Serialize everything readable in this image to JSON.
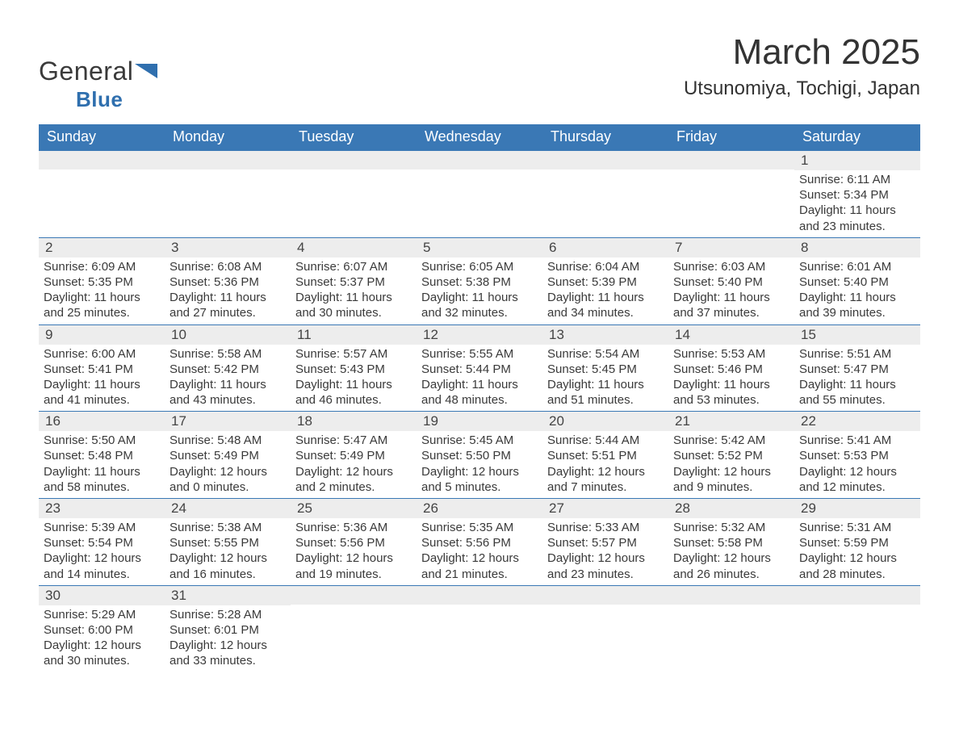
{
  "logo": {
    "word1": "General",
    "word2": "Blue"
  },
  "title": "March 2025",
  "location": "Utsunomiya, Tochigi, Japan",
  "colors": {
    "header_bg": "#3a78b5",
    "header_text": "#ffffff",
    "border": "#3a78b5",
    "daynum_bg": "#ededed",
    "text": "#3a3a3a",
    "logo_blue": "#2f6fae"
  },
  "typography": {
    "title_fontsize": 44,
    "location_fontsize": 24,
    "weekday_fontsize": 18,
    "daynum_fontsize": 17,
    "body_fontsize": 15
  },
  "weekdays": [
    "Sunday",
    "Monday",
    "Tuesday",
    "Wednesday",
    "Thursday",
    "Friday",
    "Saturday"
  ],
  "weeks": [
    [
      null,
      null,
      null,
      null,
      null,
      null,
      {
        "n": "1",
        "sunrise": "Sunrise: 6:11 AM",
        "sunset": "Sunset: 5:34 PM",
        "daylight": "Daylight: 11 hours and 23 minutes."
      }
    ],
    [
      {
        "n": "2",
        "sunrise": "Sunrise: 6:09 AM",
        "sunset": "Sunset: 5:35 PM",
        "daylight": "Daylight: 11 hours and 25 minutes."
      },
      {
        "n": "3",
        "sunrise": "Sunrise: 6:08 AM",
        "sunset": "Sunset: 5:36 PM",
        "daylight": "Daylight: 11 hours and 27 minutes."
      },
      {
        "n": "4",
        "sunrise": "Sunrise: 6:07 AM",
        "sunset": "Sunset: 5:37 PM",
        "daylight": "Daylight: 11 hours and 30 minutes."
      },
      {
        "n": "5",
        "sunrise": "Sunrise: 6:05 AM",
        "sunset": "Sunset: 5:38 PM",
        "daylight": "Daylight: 11 hours and 32 minutes."
      },
      {
        "n": "6",
        "sunrise": "Sunrise: 6:04 AM",
        "sunset": "Sunset: 5:39 PM",
        "daylight": "Daylight: 11 hours and 34 minutes."
      },
      {
        "n": "7",
        "sunrise": "Sunrise: 6:03 AM",
        "sunset": "Sunset: 5:40 PM",
        "daylight": "Daylight: 11 hours and 37 minutes."
      },
      {
        "n": "8",
        "sunrise": "Sunrise: 6:01 AM",
        "sunset": "Sunset: 5:40 PM",
        "daylight": "Daylight: 11 hours and 39 minutes."
      }
    ],
    [
      {
        "n": "9",
        "sunrise": "Sunrise: 6:00 AM",
        "sunset": "Sunset: 5:41 PM",
        "daylight": "Daylight: 11 hours and 41 minutes."
      },
      {
        "n": "10",
        "sunrise": "Sunrise: 5:58 AM",
        "sunset": "Sunset: 5:42 PM",
        "daylight": "Daylight: 11 hours and 43 minutes."
      },
      {
        "n": "11",
        "sunrise": "Sunrise: 5:57 AM",
        "sunset": "Sunset: 5:43 PM",
        "daylight": "Daylight: 11 hours and 46 minutes."
      },
      {
        "n": "12",
        "sunrise": "Sunrise: 5:55 AM",
        "sunset": "Sunset: 5:44 PM",
        "daylight": "Daylight: 11 hours and 48 minutes."
      },
      {
        "n": "13",
        "sunrise": "Sunrise: 5:54 AM",
        "sunset": "Sunset: 5:45 PM",
        "daylight": "Daylight: 11 hours and 51 minutes."
      },
      {
        "n": "14",
        "sunrise": "Sunrise: 5:53 AM",
        "sunset": "Sunset: 5:46 PM",
        "daylight": "Daylight: 11 hours and 53 minutes."
      },
      {
        "n": "15",
        "sunrise": "Sunrise: 5:51 AM",
        "sunset": "Sunset: 5:47 PM",
        "daylight": "Daylight: 11 hours and 55 minutes."
      }
    ],
    [
      {
        "n": "16",
        "sunrise": "Sunrise: 5:50 AM",
        "sunset": "Sunset: 5:48 PM",
        "daylight": "Daylight: 11 hours and 58 minutes."
      },
      {
        "n": "17",
        "sunrise": "Sunrise: 5:48 AM",
        "sunset": "Sunset: 5:49 PM",
        "daylight": "Daylight: 12 hours and 0 minutes."
      },
      {
        "n": "18",
        "sunrise": "Sunrise: 5:47 AM",
        "sunset": "Sunset: 5:49 PM",
        "daylight": "Daylight: 12 hours and 2 minutes."
      },
      {
        "n": "19",
        "sunrise": "Sunrise: 5:45 AM",
        "sunset": "Sunset: 5:50 PM",
        "daylight": "Daylight: 12 hours and 5 minutes."
      },
      {
        "n": "20",
        "sunrise": "Sunrise: 5:44 AM",
        "sunset": "Sunset: 5:51 PM",
        "daylight": "Daylight: 12 hours and 7 minutes."
      },
      {
        "n": "21",
        "sunrise": "Sunrise: 5:42 AM",
        "sunset": "Sunset: 5:52 PM",
        "daylight": "Daylight: 12 hours and 9 minutes."
      },
      {
        "n": "22",
        "sunrise": "Sunrise: 5:41 AM",
        "sunset": "Sunset: 5:53 PM",
        "daylight": "Daylight: 12 hours and 12 minutes."
      }
    ],
    [
      {
        "n": "23",
        "sunrise": "Sunrise: 5:39 AM",
        "sunset": "Sunset: 5:54 PM",
        "daylight": "Daylight: 12 hours and 14 minutes."
      },
      {
        "n": "24",
        "sunrise": "Sunrise: 5:38 AM",
        "sunset": "Sunset: 5:55 PM",
        "daylight": "Daylight: 12 hours and 16 minutes."
      },
      {
        "n": "25",
        "sunrise": "Sunrise: 5:36 AM",
        "sunset": "Sunset: 5:56 PM",
        "daylight": "Daylight: 12 hours and 19 minutes."
      },
      {
        "n": "26",
        "sunrise": "Sunrise: 5:35 AM",
        "sunset": "Sunset: 5:56 PM",
        "daylight": "Daylight: 12 hours and 21 minutes."
      },
      {
        "n": "27",
        "sunrise": "Sunrise: 5:33 AM",
        "sunset": "Sunset: 5:57 PM",
        "daylight": "Daylight: 12 hours and 23 minutes."
      },
      {
        "n": "28",
        "sunrise": "Sunrise: 5:32 AM",
        "sunset": "Sunset: 5:58 PM",
        "daylight": "Daylight: 12 hours and 26 minutes."
      },
      {
        "n": "29",
        "sunrise": "Sunrise: 5:31 AM",
        "sunset": "Sunset: 5:59 PM",
        "daylight": "Daylight: 12 hours and 28 minutes."
      }
    ],
    [
      {
        "n": "30",
        "sunrise": "Sunrise: 5:29 AM",
        "sunset": "Sunset: 6:00 PM",
        "daylight": "Daylight: 12 hours and 30 minutes."
      },
      {
        "n": "31",
        "sunrise": "Sunrise: 5:28 AM",
        "sunset": "Sunset: 6:01 PM",
        "daylight": "Daylight: 12 hours and 33 minutes."
      },
      null,
      null,
      null,
      null,
      null
    ]
  ]
}
